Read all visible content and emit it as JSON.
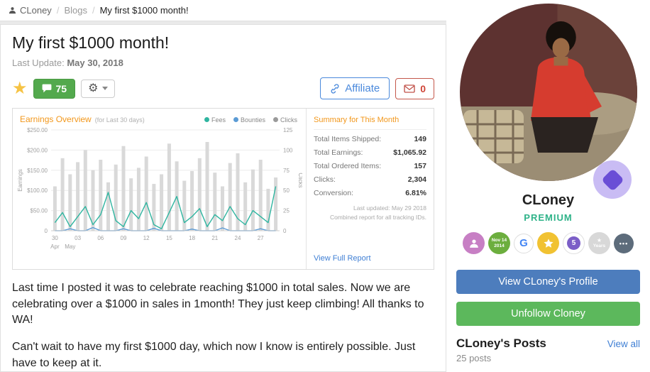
{
  "icons": {
    "favorite_star": "★",
    "gear": "⚙",
    "badge_star": "★",
    "years_star": "★",
    "more_dots": "•••"
  },
  "breadcrumb": {
    "user": "CLoney",
    "separator": "/",
    "section": "Blogs",
    "current": "My first $1000 month!"
  },
  "post": {
    "title": "My first $1000 month!",
    "last_update_label": "Last Update:",
    "last_update_date": "May 30, 2018",
    "comments_count": "75",
    "affiliate_label": "Affiliate",
    "messages_count": "0",
    "paragraph1": "Last time I posted it was to celebrate reaching $1000 in total sales. Now we are celebrating over a $1000 in sales in 1month! They just keep climbing! All thanks to WA!",
    "paragraph2": "Can't wait to have my first $1000 day, which now I know is entirely possible. Just have to keep at it."
  },
  "dashboard": {
    "title": "Earnings Overview",
    "subtitle": "(for Last 30 days)",
    "legend": [
      {
        "label": "Fees",
        "color": "#2fb5a0"
      },
      {
        "label": "Bounties",
        "color": "#5b9bd5"
      },
      {
        "label": "Clicks",
        "color": "#9a9a9a"
      }
    ],
    "summary": {
      "title": "Summary for This Month",
      "rows": [
        {
          "label": "Total Items Shipped:",
          "value": "149"
        },
        {
          "label": "Total Earnings:",
          "value": "$1,065.92"
        },
        {
          "label": "Total Ordered Items:",
          "value": "157"
        },
        {
          "label": "Clicks:",
          "value": "2,304"
        },
        {
          "label": "Conversion:",
          "value": "6.81%"
        }
      ],
      "updated": "Last updated: May 29 2018",
      "note": "Combined report for all tracking IDs.",
      "link": "View Full Report"
    }
  },
  "sidebar": {
    "name": "CLoney",
    "tier": "PREMIUM",
    "badges": {
      "member_line1": "Nov 14",
      "member_line2": "2014",
      "google_letter": "G",
      "rank_value": "5",
      "years_label": "Years"
    },
    "profile_button": "View CLoney's Profile",
    "follow_button": "Unfollow Cloney",
    "posts_heading": "CLoney's Posts",
    "view_all": "View all",
    "posts_count": "25 posts"
  },
  "chart_data": {
    "type": "combo (bar + line)",
    "title": "Earnings Overview",
    "subtitle": "(for Last 30 days)",
    "series": [
      {
        "name": "Fees",
        "type": "line",
        "axis": "left",
        "color": "#2fb5a0",
        "values": [
          20,
          45,
          10,
          35,
          60,
          15,
          40,
          95,
          25,
          10,
          50,
          30,
          70,
          15,
          5,
          45,
          85,
          20,
          35,
          55,
          10,
          40,
          25,
          60,
          30,
          15,
          50,
          35,
          20,
          110
        ]
      },
      {
        "name": "Bounties",
        "type": "line",
        "axis": "left",
        "color": "#5b9bd5",
        "values": [
          0,
          0,
          5,
          0,
          0,
          8,
          0,
          0,
          0,
          5,
          0,
          0,
          0,
          6,
          0,
          0,
          0,
          0,
          4,
          0,
          0,
          0,
          7,
          0,
          0,
          0,
          0,
          5,
          0,
          0
        ]
      },
      {
        "name": "Clicks",
        "type": "bar",
        "axis": "right",
        "color": "#d9d9d9",
        "values": [
          55,
          90,
          70,
          85,
          100,
          75,
          88,
          60,
          82,
          105,
          65,
          78,
          92,
          58,
          70,
          108,
          86,
          62,
          74,
          90,
          110,
          72,
          55,
          84,
          96,
          60,
          76,
          88,
          52,
          66
        ]
      }
    ],
    "left_axis": {
      "title": "Earnings",
      "range": [
        0,
        250
      ],
      "ticks": [
        "$250.00",
        "$200.00",
        "$150.00",
        "$100.00",
        "$50.00",
        "0"
      ]
    },
    "right_axis": {
      "title": "Clicks",
      "range": [
        0,
        125
      ],
      "ticks": [
        "125",
        "100",
        "75",
        "50",
        "25",
        "0"
      ]
    },
    "x_axis": {
      "tick_positions": [
        0,
        3,
        6,
        9,
        12,
        15,
        18,
        21,
        24,
        27
      ],
      "tick_labels": [
        "30",
        "03",
        "06",
        "09",
        "12",
        "15",
        "18",
        "21",
        "24",
        "27"
      ],
      "month_labels": [
        {
          "label": "Apr",
          "position": 0
        },
        {
          "label": "May",
          "position": 2
        }
      ]
    },
    "grid": true,
    "legend_position": "top-right"
  }
}
